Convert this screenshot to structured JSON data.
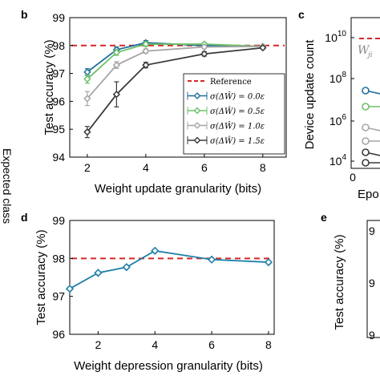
{
  "colors": {
    "reference": "#d62728",
    "s00": "#1f6f9b",
    "s05": "#6cc06a",
    "s10": "#a6a6a6",
    "s15": "#3a3a3a",
    "depression": "#1f7fa8"
  },
  "side_label": "Expected class",
  "panel_b": {
    "letter": "b",
    "chart_data": {
      "type": "line",
      "title": "",
      "xlabel": "Weight update granularity (bits)",
      "ylabel": "Test accuracy (%)",
      "xlim": [
        1.4,
        8.8
      ],
      "ylim": [
        94,
        99
      ],
      "xticks": [
        "2",
        "4",
        "6",
        "8"
      ],
      "yticks": [
        "94",
        "95",
        "96",
        "97",
        "98",
        "99"
      ],
      "grid": false,
      "legend_position": "bottom-right",
      "reference": {
        "name": "Reference",
        "value": 98
      },
      "x": [
        2,
        3,
        4,
        6,
        8
      ],
      "series": [
        {
          "name": "σ(ΔŴ) = 0.0ε",
          "values": [
            97.05,
            97.85,
            98.1,
            98.0,
            97.97
          ],
          "err": [
            0.12,
            0.1,
            0.08,
            0.06,
            0.05
          ]
        },
        {
          "name": "σ(ΔŴ) = 0.5ε",
          "values": [
            96.8,
            97.75,
            98.05,
            98.05,
            97.97
          ],
          "err": [
            0.15,
            0.1,
            0.08,
            0.06,
            0.05
          ]
        },
        {
          "name": "σ(ΔŴ) = 1.0ε",
          "values": [
            96.1,
            97.3,
            97.8,
            97.95,
            97.97
          ],
          "err": [
            0.25,
            0.12,
            0.08,
            0.06,
            0.05
          ]
        },
        {
          "name": "σ(ΔŴ) = 1.5ε",
          "values": [
            94.9,
            96.25,
            97.3,
            97.7,
            97.92
          ],
          "err": [
            0.2,
            0.45,
            0.1,
            0.08,
            0.05
          ]
        }
      ]
    }
  },
  "panel_c": {
    "letter": "c",
    "chart_data": {
      "type": "line",
      "title": "",
      "xlabel": "Epo",
      "ylabel": "Device update count",
      "xticks": [
        "0"
      ],
      "yticks": [
        "10^4",
        "10^6",
        "10^8",
        "10^10"
      ],
      "annotation": "W",
      "annotation_sub": "ji"
    }
  },
  "panel_d": {
    "letter": "d",
    "chart_data": {
      "type": "line",
      "title": "",
      "xlabel": "Weight depression granularity (bits)",
      "ylabel": "Test accuracy (%)",
      "xlim": [
        1,
        8.2
      ],
      "ylim": [
        96,
        99
      ],
      "xticks": [
        "2",
        "4",
        "6",
        "8"
      ],
      "yticks": [
        "96",
        "97",
        "98",
        "99"
      ],
      "grid": false,
      "reference": {
        "value": 98
      },
      "x": [
        1,
        2,
        3,
        4,
        6,
        8
      ],
      "values": [
        97.2,
        97.62,
        97.77,
        98.2,
        97.97,
        97.9
      ]
    }
  },
  "panel_e": {
    "letter": "e",
    "chart_data": {
      "type": "line",
      "title": "",
      "ylabel": "Test accuracy (%)",
      "yticks": [
        "9",
        "9",
        "9"
      ]
    }
  }
}
